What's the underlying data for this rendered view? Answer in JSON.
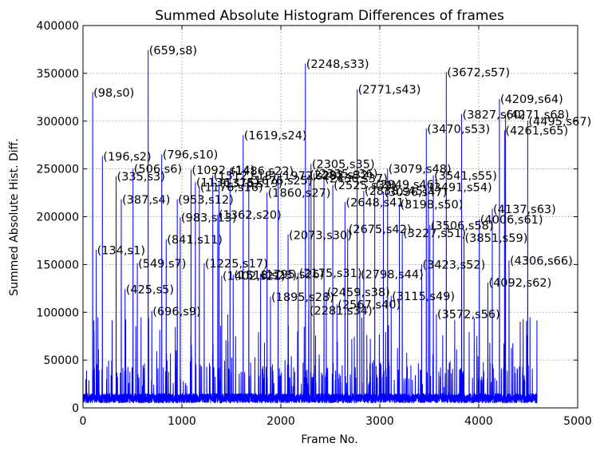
{
  "chart_data": {
    "type": "line",
    "title": "Summed Absolute Histogram Differences of frames",
    "xlabel": "Frame No.",
    "ylabel": "Summed Absolute Hist. Diff.",
    "xlim": [
      0,
      5000
    ],
    "ylim": [
      0,
      400000
    ],
    "xticks": [
      "0",
      "1000",
      "2000",
      "3000",
      "4000",
      "5000"
    ],
    "yticks": [
      "0",
      "50000",
      "100000",
      "150000",
      "200000",
      "250000",
      "300000",
      "350000",
      "400000"
    ],
    "grid": true,
    "line_color": "#0000ff",
    "frame_count": 4590,
    "noise_level": 15000,
    "peaks": [
      {
        "x": 98,
        "y": 330000,
        "label": "(98,s0)"
      },
      {
        "x": 134,
        "y": 165000,
        "label": "(134,s1)"
      },
      {
        "x": 196,
        "y": 263000,
        "label": "(196,s2)"
      },
      {
        "x": 335,
        "y": 242000,
        "label": "(335,s3)"
      },
      {
        "x": 387,
        "y": 218000,
        "label": "(387,s4)"
      },
      {
        "x": 425,
        "y": 124000,
        "label": "(425,s5)"
      },
      {
        "x": 506,
        "y": 250000,
        "label": "(506,s6)"
      },
      {
        "x": 549,
        "y": 151000,
        "label": "(549,s7)"
      },
      {
        "x": 659,
        "y": 374000,
        "label": "(659,s8)"
      },
      {
        "x": 696,
        "y": 101000,
        "label": "(696,s9)"
      },
      {
        "x": 796,
        "y": 265000,
        "label": "(796,s10)"
      },
      {
        "x": 841,
        "y": 176000,
        "label": "(841,s11)"
      },
      {
        "x": 953,
        "y": 218000,
        "label": "(953,s12)"
      },
      {
        "x": 983,
        "y": 199000,
        "label": "(983,s13)"
      },
      {
        "x": 1092,
        "y": 249000,
        "label": "(1092,s14)"
      },
      {
        "x": 1136,
        "y": 236000,
        "label": "(1136,s15)"
      },
      {
        "x": 1176,
        "y": 231000,
        "label": "(1176,s16)"
      },
      {
        "x": 1225,
        "y": 151000,
        "label": "(1225,s17)"
      },
      {
        "x": 1312,
        "y": 243000,
        "label": "(1312,s18)"
      },
      {
        "x": 1375,
        "y": 235000,
        "label": "(1375,s19)"
      },
      {
        "x": 1362,
        "y": 202000,
        "label": "(1362,s20)"
      },
      {
        "x": 1402,
        "y": 138000,
        "label": "(1402,s21)"
      },
      {
        "x": 1486,
        "y": 248000,
        "label": "(1486,s22)"
      },
      {
        "x": 1518,
        "y": 139000,
        "label": "(1518,s23)"
      },
      {
        "x": 1619,
        "y": 285000,
        "label": "(1619,s24)"
      },
      {
        "x": 1676,
        "y": 238000,
        "label": "(1676,s25)"
      },
      {
        "x": 1795,
        "y": 140000,
        "label": "(1795,s26)"
      },
      {
        "x": 1860,
        "y": 225000,
        "label": "(1860,s27)"
      },
      {
        "x": 1895,
        "y": 116000,
        "label": "(1895,s28)"
      },
      {
        "x": 1972,
        "y": 243000,
        "label": "(1972,s29)"
      },
      {
        "x": 2073,
        "y": 181000,
        "label": "(2073,s30)"
      },
      {
        "x": 2175,
        "y": 141000,
        "label": "(2175,s31)"
      },
      {
        "x": 2283,
        "y": 244000,
        "label": "(2283,s32)"
      },
      {
        "x": 2248,
        "y": 360000,
        "label": "(2248,s33)"
      },
      {
        "x": 2281,
        "y": 102000,
        "label": "(2281,s34)"
      },
      {
        "x": 2305,
        "y": 255000,
        "label": "(2305,s35)"
      },
      {
        "x": 2335,
        "y": 245000,
        "label": "(2335,s36)"
      },
      {
        "x": 2436,
        "y": 240000,
        "label": "(2436,s37)"
      },
      {
        "x": 2459,
        "y": 121000,
        "label": "(2459,s38)"
      },
      {
        "x": 2525,
        "y": 233000,
        "label": "(2525,s39)"
      },
      {
        "x": 2567,
        "y": 108000,
        "label": "(2567,s40)"
      },
      {
        "x": 2648,
        "y": 215000,
        "label": "(2648,s41)"
      },
      {
        "x": 2675,
        "y": 187000,
        "label": "(2675,s42)"
      },
      {
        "x": 2771,
        "y": 333000,
        "label": "(2771,s43)"
      },
      {
        "x": 2798,
        "y": 140000,
        "label": "(2798,s44)"
      },
      {
        "x": 2838,
        "y": 227000,
        "label": "(2838,s45)"
      },
      {
        "x": 2949,
        "y": 234000,
        "label": "(2949,s46)"
      },
      {
        "x": 3036,
        "y": 226000,
        "label": "(3036,s47)"
      },
      {
        "x": 3079,
        "y": 250000,
        "label": "(3079,s48)"
      },
      {
        "x": 3115,
        "y": 117000,
        "label": "(3115,s49)"
      },
      {
        "x": 3198,
        "y": 213000,
        "label": "(3198,s50)"
      },
      {
        "x": 3227,
        "y": 183000,
        "label": "(3227,s51)"
      },
      {
        "x": 3423,
        "y": 150000,
        "label": "(3423,s52)"
      },
      {
        "x": 3470,
        "y": 292000,
        "label": "(3470,s53)"
      },
      {
        "x": 3491,
        "y": 231000,
        "label": "(3491,s54)"
      },
      {
        "x": 3541,
        "y": 243000,
        "label": "(3541,s55)"
      },
      {
        "x": 3572,
        "y": 98000,
        "label": "(3572,s56)"
      },
      {
        "x": 3672,
        "y": 351000,
        "label": "(3672,s57)"
      },
      {
        "x": 3506,
        "y": 191000,
        "label": "(3506,s58)"
      },
      {
        "x": 3851,
        "y": 178000,
        "label": "(3851,s59)"
      },
      {
        "x": 3827,
        "y": 307000,
        "label": "(3827,s60)"
      },
      {
        "x": 4006,
        "y": 197000,
        "label": "(4006,s61)"
      },
      {
        "x": 4092,
        "y": 131000,
        "label": "(4092,s62)"
      },
      {
        "x": 4137,
        "y": 208000,
        "label": "(4137,s63)"
      },
      {
        "x": 4209,
        "y": 323000,
        "label": "(4209,s64)"
      },
      {
        "x": 4261,
        "y": 290000,
        "label": "(4261,s65)"
      },
      {
        "x": 4306,
        "y": 154000,
        "label": "(4306,s66)"
      },
      {
        "x": 4495,
        "y": 300000,
        "label": "(4495,s67)"
      },
      {
        "x": 4271,
        "y": 307000,
        "label": "(4271,s68)"
      }
    ]
  }
}
